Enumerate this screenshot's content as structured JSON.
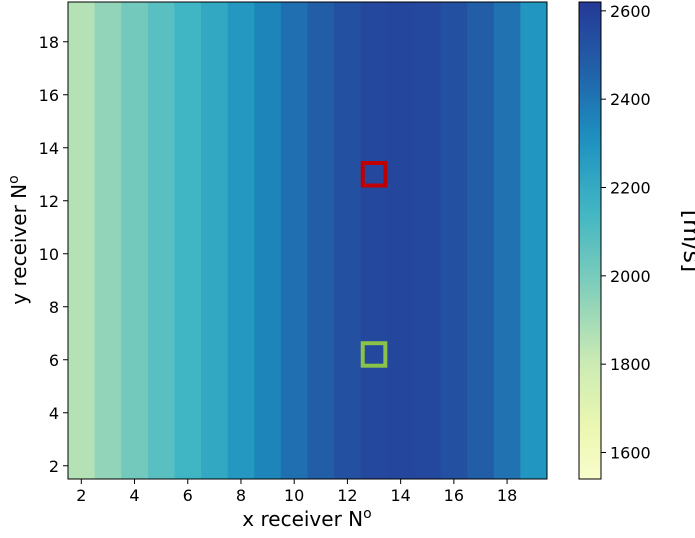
{
  "chart_data": {
    "type": "heatmap",
    "title": "",
    "xlabel_main": "x receiver N",
    "xlabel_sup": "o",
    "ylabel_main": "y receiver N",
    "ylabel_sup": "o",
    "x_range": [
      1.5,
      19.5
    ],
    "y_range": [
      1.5,
      19.5
    ],
    "x_ticks": [
      2,
      4,
      6,
      8,
      10,
      12,
      14,
      16,
      18
    ],
    "y_ticks": [
      2,
      4,
      6,
      8,
      10,
      12,
      14,
      16,
      18
    ],
    "grid": false,
    "colorbar": {
      "label": "[m/s]",
      "range": [
        1540,
        2620
      ],
      "ticks": [
        1600,
        1800,
        2000,
        2200,
        2400,
        2600
      ],
      "colormap": "YlGnBu",
      "position": "right"
    },
    "column_x": [
      2,
      3,
      4,
      5,
      6,
      7,
      8,
      9,
      10,
      11,
      12,
      13,
      14,
      15,
      16,
      17,
      18,
      19
    ],
    "column_values": [
      1860,
      1940,
      2010,
      2080,
      2150,
      2210,
      2280,
      2350,
      2420,
      2480,
      2530,
      2560,
      2570,
      2560,
      2530,
      2480,
      2410,
      2290
    ],
    "markers": [
      {
        "name": "red-square",
        "x": 13,
        "y": 13,
        "color": "#c00000"
      },
      {
        "name": "green-square",
        "x": 13,
        "y": 6.2,
        "color": "#8bc34a"
      }
    ]
  }
}
